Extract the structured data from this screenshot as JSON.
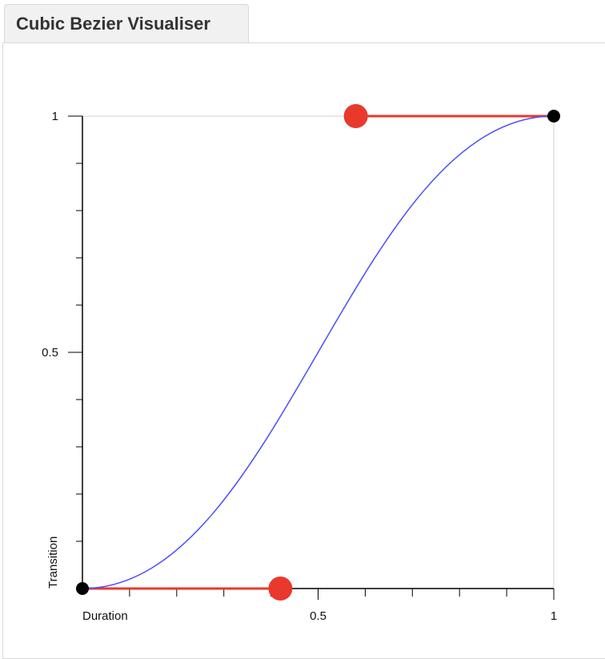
{
  "tab": {
    "title": "Cubic Bezier Visualiser"
  },
  "chart_data": {
    "type": "cubic-bezier",
    "x_label": "Duration",
    "y_label": "Transition",
    "xlim": [
      0,
      1
    ],
    "ylim": [
      0,
      1
    ],
    "xticks": [
      0.5,
      1
    ],
    "yticks": [
      0.5,
      1
    ],
    "xminorticks": [
      0.1,
      0.2,
      0.3,
      0.4,
      0.6,
      0.7,
      0.8,
      0.9
    ],
    "yminorticks": [
      0.1,
      0.2,
      0.3,
      0.4,
      0.6,
      0.7,
      0.8,
      0.9
    ],
    "points": [
      {
        "x": 0,
        "y": 0
      },
      {
        "x": 0.42,
        "y": 0
      },
      {
        "x": 0.58,
        "y": 1
      },
      {
        "x": 1,
        "y": 1
      }
    ],
    "curve_color": "#4d4dff",
    "handle_color": "#e8392c",
    "endpoint_color": "#000000"
  }
}
